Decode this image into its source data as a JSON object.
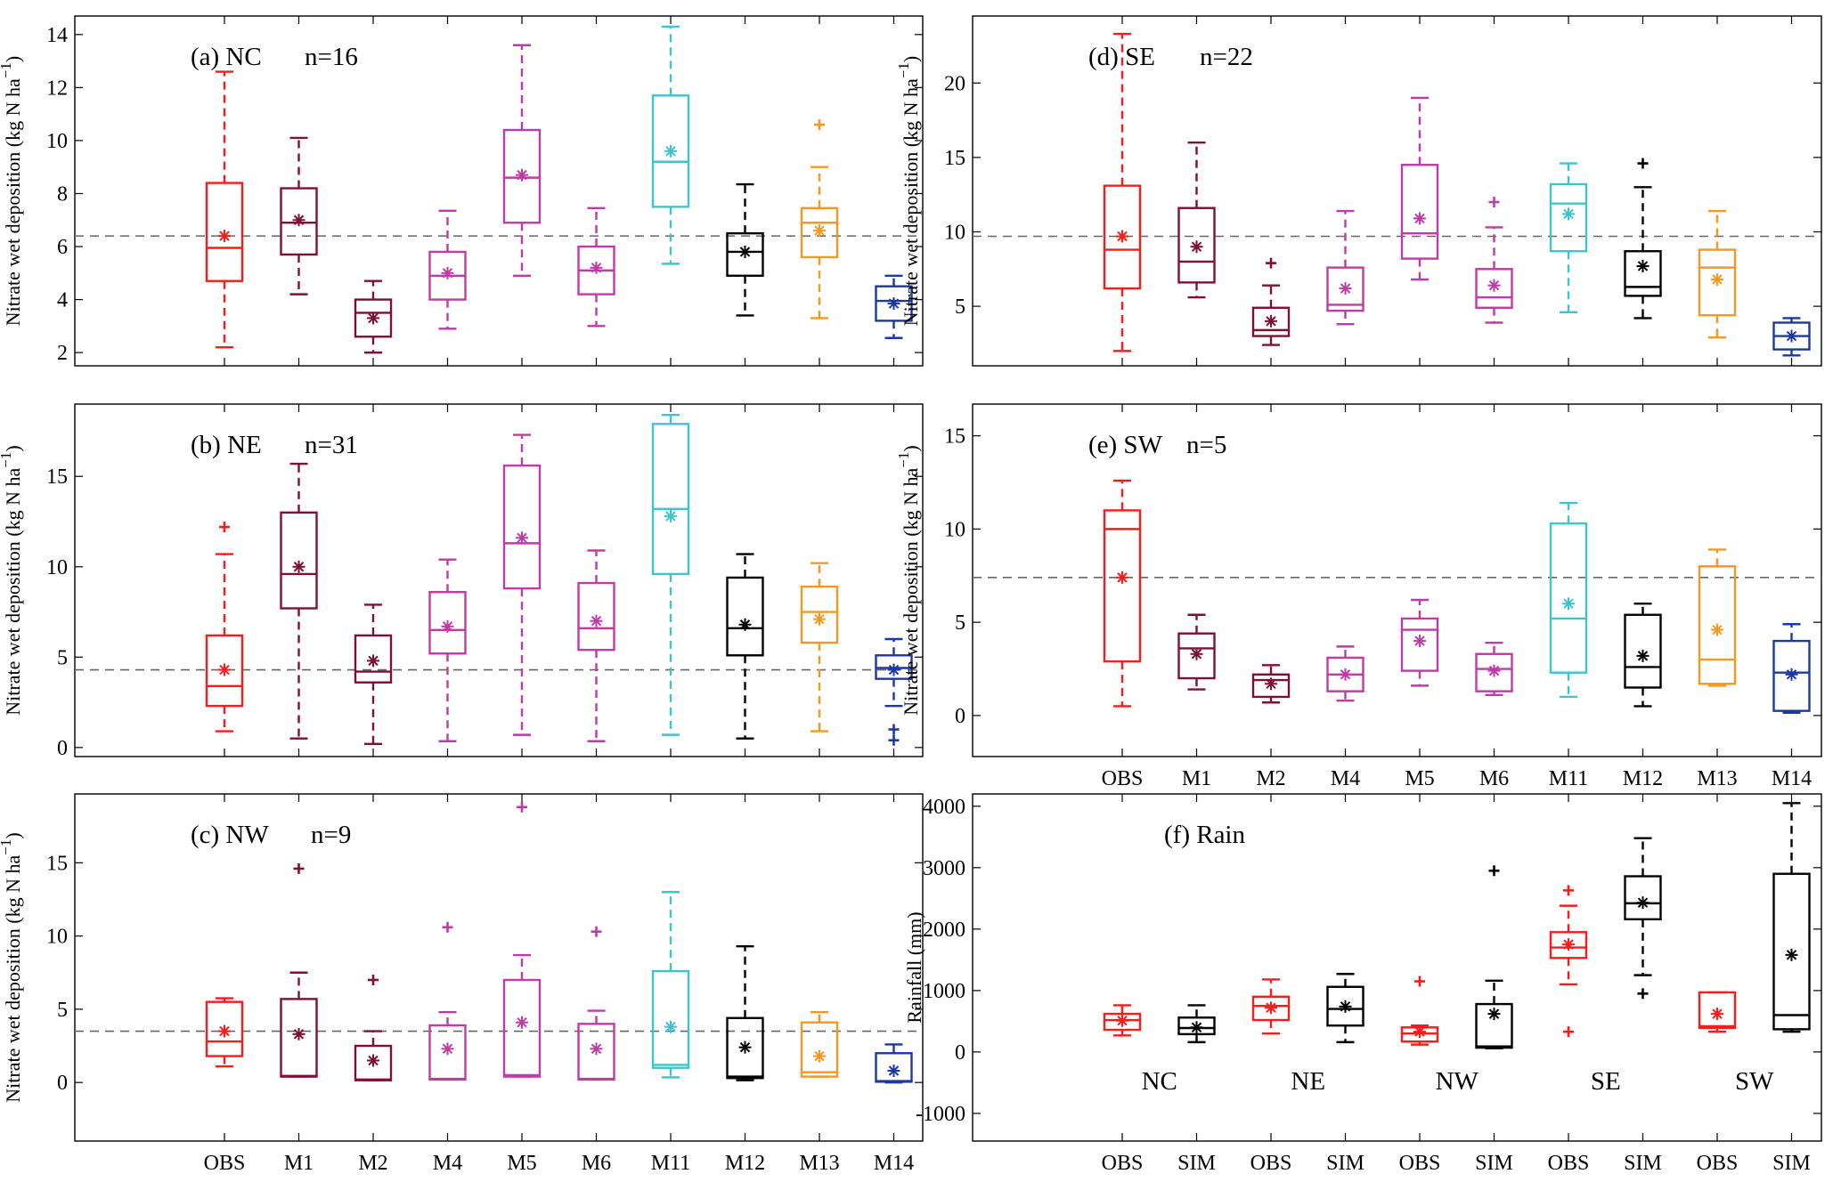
{
  "colors": {
    "OBS": "#ff1a1a",
    "M1": "#7f1030",
    "M2": "#7f1030",
    "M4": "#c03aa8",
    "M5": "#c03aa8",
    "M6": "#c03aa8",
    "M11": "#3cc4cf",
    "M12": "#000000",
    "M13": "#f7981d",
    "M14": "#1a3a9f",
    "SIM": "#000000",
    "axis": "#000000",
    "refline": "#666666"
  },
  "chart_data": [
    {
      "id": "a",
      "type": "boxplot",
      "title": "(a) NC",
      "n_label": "n=16",
      "ylabel": "Nitrate wet deposition (kg N ha",
      "ylabel_exp": "−1",
      "ylabel_close": ")",
      "ylim": [
        1.5,
        14.7
      ],
      "yticks": [
        2,
        4,
        6,
        8,
        10,
        12,
        14
      ],
      "ref_line": 6.4,
      "show_xticklabels": false,
      "categories": [
        "OBS",
        "M1",
        "M2",
        "M4",
        "M5",
        "M6",
        "M11",
        "M12",
        "M13",
        "M14"
      ],
      "boxes": [
        {
          "cat": "OBS",
          "wlo": 2.2,
          "q1": 4.7,
          "med": 5.95,
          "q3": 8.4,
          "whi": 12.6,
          "mean": 6.4,
          "outliers": []
        },
        {
          "cat": "M1",
          "wlo": 4.2,
          "q1": 5.7,
          "med": 6.9,
          "q3": 8.2,
          "whi": 10.1,
          "mean": 7.0,
          "outliers": []
        },
        {
          "cat": "M2",
          "wlo": 2.0,
          "q1": 2.6,
          "med": 3.5,
          "q3": 4.0,
          "whi": 4.7,
          "mean": 3.3,
          "outliers": []
        },
        {
          "cat": "M4",
          "wlo": 2.9,
          "q1": 4.0,
          "med": 4.9,
          "q3": 5.8,
          "whi": 7.35,
          "mean": 5.0,
          "outliers": []
        },
        {
          "cat": "M5",
          "wlo": 4.9,
          "q1": 6.9,
          "med": 8.6,
          "q3": 10.4,
          "whi": 13.6,
          "mean": 8.7,
          "outliers": []
        },
        {
          "cat": "M6",
          "wlo": 3.0,
          "q1": 4.2,
          "med": 5.1,
          "q3": 6.0,
          "whi": 7.45,
          "mean": 5.2,
          "outliers": []
        },
        {
          "cat": "M11",
          "wlo": 5.35,
          "q1": 7.5,
          "med": 9.2,
          "q3": 11.7,
          "whi": 14.3,
          "mean": 9.6,
          "outliers": []
        },
        {
          "cat": "M12",
          "wlo": 3.4,
          "q1": 4.9,
          "med": 5.8,
          "q3": 6.5,
          "whi": 8.35,
          "mean": 5.8,
          "outliers": []
        },
        {
          "cat": "M13",
          "wlo": 3.3,
          "q1": 5.6,
          "med": 6.9,
          "q3": 7.45,
          "whi": 9.0,
          "mean": 6.6,
          "outliers": [
            10.6
          ]
        },
        {
          "cat": "M14",
          "wlo": 2.55,
          "q1": 3.2,
          "med": 3.95,
          "q3": 4.5,
          "whi": 4.9,
          "mean": 3.85,
          "outliers": []
        }
      ]
    },
    {
      "id": "b",
      "type": "boxplot",
      "title": "(b) NE",
      "n_label": "n=31",
      "ylabel": "Nitrate wet deposition (kg N ha",
      "ylabel_exp": "−1",
      "ylabel_close": ")",
      "ylim": [
        -0.5,
        19
      ],
      "yticks": [
        0,
        5,
        10,
        15
      ],
      "ref_line": 4.3,
      "show_xticklabels": false,
      "categories": [
        "OBS",
        "M1",
        "M2",
        "M4",
        "M5",
        "M6",
        "M11",
        "M12",
        "M13",
        "M14"
      ],
      "boxes": [
        {
          "cat": "OBS",
          "wlo": 0.9,
          "q1": 2.3,
          "med": 3.4,
          "q3": 6.2,
          "whi": 10.7,
          "mean": 4.3,
          "outliers": [
            12.2
          ]
        },
        {
          "cat": "M1",
          "wlo": 0.5,
          "q1": 7.7,
          "med": 9.6,
          "q3": 13.0,
          "whi": 15.7,
          "mean": 10.0,
          "outliers": []
        },
        {
          "cat": "M2",
          "wlo": 0.2,
          "q1": 3.6,
          "med": 4.2,
          "q3": 6.2,
          "whi": 7.9,
          "mean": 4.8,
          "outliers": []
        },
        {
          "cat": "M4",
          "wlo": 0.35,
          "q1": 5.2,
          "med": 6.5,
          "q3": 8.6,
          "whi": 10.4,
          "mean": 6.7,
          "outliers": []
        },
        {
          "cat": "M5",
          "wlo": 0.7,
          "q1": 8.8,
          "med": 11.3,
          "q3": 15.6,
          "whi": 17.3,
          "mean": 11.6,
          "outliers": []
        },
        {
          "cat": "M6",
          "wlo": 0.35,
          "q1": 5.4,
          "med": 6.6,
          "q3": 9.1,
          "whi": 10.9,
          "mean": 7.0,
          "outliers": []
        },
        {
          "cat": "M11",
          "wlo": 0.7,
          "q1": 9.6,
          "med": 13.2,
          "q3": 17.9,
          "whi": 18.4,
          "mean": 12.8,
          "outliers": []
        },
        {
          "cat": "M12",
          "wlo": 0.5,
          "q1": 5.1,
          "med": 6.6,
          "q3": 9.4,
          "whi": 10.7,
          "mean": 6.8,
          "outliers": []
        },
        {
          "cat": "M13",
          "wlo": 0.9,
          "q1": 5.8,
          "med": 7.5,
          "q3": 8.9,
          "whi": 10.2,
          "mean": 7.1,
          "outliers": []
        },
        {
          "cat": "M14",
          "wlo": 2.3,
          "q1": 3.8,
          "med": 4.4,
          "q3": 5.1,
          "whi": 6.0,
          "mean": 4.3,
          "outliers": [
            1.0,
            0.4
          ]
        }
      ]
    },
    {
      "id": "c",
      "type": "boxplot",
      "title": "(c) NW",
      "n_label": "n=9",
      "ylabel": "Nitrate wet deposition (kg N ha",
      "ylabel_exp": "−1",
      "ylabel_close": ")",
      "ylim": [
        -4,
        19.7
      ],
      "yticks": [
        0,
        5,
        10,
        15
      ],
      "ref_line": 3.5,
      "show_xticklabels": true,
      "categories": [
        "OBS",
        "M1",
        "M2",
        "M4",
        "M5",
        "M6",
        "M11",
        "M12",
        "M13",
        "M14"
      ],
      "boxes": [
        {
          "cat": "OBS",
          "wlo": 1.1,
          "q1": 1.8,
          "med": 2.8,
          "q3": 5.5,
          "whi": 5.75,
          "mean": 3.5,
          "outliers": []
        },
        {
          "cat": "M1",
          "wlo": 0.4,
          "q1": 0.4,
          "med": 0.45,
          "q3": 5.7,
          "whi": 7.5,
          "mean": 3.3,
          "outliers": [
            14.6
          ]
        },
        {
          "cat": "M2",
          "wlo": 0.15,
          "q1": 0.15,
          "med": 0.2,
          "q3": 2.5,
          "whi": 3.5,
          "mean": 1.5,
          "outliers": [
            7.0
          ]
        },
        {
          "cat": "M4",
          "wlo": 0.2,
          "q1": 0.2,
          "med": 0.25,
          "q3": 3.9,
          "whi": 4.8,
          "mean": 2.3,
          "outliers": [
            10.6
          ]
        },
        {
          "cat": "M5",
          "wlo": 0.4,
          "q1": 0.4,
          "med": 0.5,
          "q3": 7.0,
          "whi": 8.7,
          "mean": 4.1,
          "outliers": [
            18.8
          ]
        },
        {
          "cat": "M6",
          "wlo": 0.2,
          "q1": 0.2,
          "med": 0.25,
          "q3": 4.0,
          "whi": 4.9,
          "mean": 2.3,
          "outliers": [
            10.3
          ]
        },
        {
          "cat": "M11",
          "wlo": 0.35,
          "q1": 1.0,
          "med": 1.2,
          "q3": 7.6,
          "whi": 13.0,
          "mean": 3.8,
          "outliers": []
        },
        {
          "cat": "M12",
          "wlo": 0.15,
          "q1": 0.3,
          "med": 0.4,
          "q3": 4.4,
          "whi": 9.3,
          "mean": 2.4,
          "outliers": []
        },
        {
          "cat": "M13",
          "wlo": 0.4,
          "q1": 0.4,
          "med": 0.7,
          "q3": 4.1,
          "whi": 4.8,
          "mean": 1.8,
          "outliers": []
        },
        {
          "cat": "M14",
          "wlo": 0.0,
          "q1": 0.05,
          "med": 0.1,
          "q3": 2.0,
          "whi": 2.6,
          "mean": 0.8,
          "outliers": []
        }
      ]
    },
    {
      "id": "d",
      "type": "boxplot",
      "title": "(d) SE",
      "n_label": "n=22",
      "ylabel": "Nitrate wet deposition (kg N ha",
      "ylabel_exp": "−1",
      "ylabel_close": ")",
      "ylim": [
        1,
        24.5
      ],
      "yticks": [
        5,
        10,
        15,
        20
      ],
      "ref_line": 9.7,
      "show_xticklabels": false,
      "categories": [
        "OBS",
        "M1",
        "M2",
        "M4",
        "M5",
        "M6",
        "M11",
        "M12",
        "M13",
        "M14"
      ],
      "boxes": [
        {
          "cat": "OBS",
          "wlo": 2.0,
          "q1": 6.2,
          "med": 8.8,
          "q3": 13.1,
          "whi": 23.3,
          "mean": 9.7,
          "outliers": []
        },
        {
          "cat": "M1",
          "wlo": 5.6,
          "q1": 6.6,
          "med": 8.0,
          "q3": 11.6,
          "whi": 16.0,
          "mean": 9.0,
          "outliers": []
        },
        {
          "cat": "M2",
          "wlo": 2.4,
          "q1": 3.0,
          "med": 3.4,
          "q3": 4.9,
          "whi": 6.4,
          "mean": 4.0,
          "outliers": [
            7.9
          ]
        },
        {
          "cat": "M4",
          "wlo": 3.8,
          "q1": 4.7,
          "med": 5.1,
          "q3": 7.6,
          "whi": 11.4,
          "mean": 6.2,
          "outliers": []
        },
        {
          "cat": "M5",
          "wlo": 6.8,
          "q1": 8.2,
          "med": 9.9,
          "q3": 14.5,
          "whi": 19.0,
          "mean": 10.9,
          "outliers": []
        },
        {
          "cat": "M6",
          "wlo": 3.9,
          "q1": 4.9,
          "med": 5.6,
          "q3": 7.5,
          "whi": 10.3,
          "mean": 6.4,
          "outliers": [
            12.0
          ]
        },
        {
          "cat": "M11",
          "wlo": 4.6,
          "q1": 8.7,
          "med": 11.9,
          "q3": 13.2,
          "whi": 14.6,
          "mean": 11.2,
          "outliers": []
        },
        {
          "cat": "M12",
          "wlo": 4.2,
          "q1": 5.7,
          "med": 6.3,
          "q3": 8.7,
          "whi": 13.0,
          "mean": 7.7,
          "outliers": [
            14.6
          ]
        },
        {
          "cat": "M13",
          "wlo": 2.9,
          "q1": 4.4,
          "med": 7.6,
          "q3": 8.8,
          "whi": 11.4,
          "mean": 6.8,
          "outliers": []
        },
        {
          "cat": "M14",
          "wlo": 1.7,
          "q1": 2.1,
          "med": 3.0,
          "q3": 3.9,
          "whi": 4.2,
          "mean": 3.0,
          "outliers": []
        }
      ]
    },
    {
      "id": "e",
      "type": "boxplot",
      "title": "(e) SW",
      "n_label": "n=5",
      "ylabel": "Nitrate wet deposition (kg N ha",
      "ylabel_exp": "−1",
      "ylabel_close": ")",
      "ylim": [
        -2.2,
        16.7
      ],
      "yticks": [
        0,
        5,
        10,
        15
      ],
      "ref_line": 7.4,
      "show_xticklabels": true,
      "categories": [
        "OBS",
        "M1",
        "M2",
        "M4",
        "M5",
        "M6",
        "M11",
        "M12",
        "M13",
        "M14"
      ],
      "boxes": [
        {
          "cat": "OBS",
          "wlo": 0.5,
          "q1": 2.9,
          "med": 10.0,
          "q3": 11.0,
          "whi": 12.6,
          "mean": 7.4,
          "outliers": []
        },
        {
          "cat": "M1",
          "wlo": 1.4,
          "q1": 2.0,
          "med": 3.6,
          "q3": 4.4,
          "whi": 5.4,
          "mean": 3.3,
          "outliers": []
        },
        {
          "cat": "M2",
          "wlo": 0.7,
          "q1": 1.0,
          "med": 1.9,
          "q3": 2.2,
          "whi": 2.7,
          "mean": 1.7,
          "outliers": []
        },
        {
          "cat": "M4",
          "wlo": 0.8,
          "q1": 1.3,
          "med": 2.2,
          "q3": 3.1,
          "whi": 3.7,
          "mean": 2.2,
          "outliers": []
        },
        {
          "cat": "M5",
          "wlo": 1.6,
          "q1": 2.4,
          "med": 4.6,
          "q3": 5.2,
          "whi": 6.2,
          "mean": 4.0,
          "outliers": []
        },
        {
          "cat": "M6",
          "wlo": 1.1,
          "q1": 1.3,
          "med": 2.5,
          "q3": 3.3,
          "whi": 3.9,
          "mean": 2.4,
          "outliers": []
        },
        {
          "cat": "M11",
          "wlo": 1.0,
          "q1": 2.3,
          "med": 5.2,
          "q3": 10.3,
          "whi": 11.4,
          "mean": 6.0,
          "outliers": []
        },
        {
          "cat": "M12",
          "wlo": 0.5,
          "q1": 1.5,
          "med": 2.6,
          "q3": 5.4,
          "whi": 6.0,
          "mean": 3.2,
          "outliers": []
        },
        {
          "cat": "M13",
          "wlo": 1.6,
          "q1": 1.7,
          "med": 3.0,
          "q3": 8.0,
          "whi": 8.9,
          "mean": 4.6,
          "outliers": []
        },
        {
          "cat": "M14",
          "wlo": 0.15,
          "q1": 0.25,
          "med": 2.3,
          "q3": 4.0,
          "whi": 4.9,
          "mean": 2.2,
          "outliers": []
        }
      ]
    },
    {
      "id": "f",
      "type": "boxplot",
      "title": "(f) Rain",
      "n_label": "",
      "ylabel": "Rainfall (mm)",
      "ylabel_exp": "",
      "ylabel_close": "",
      "ylim": [
        -1450,
        4200
      ],
      "yticks": [
        -1000,
        0,
        1000,
        2000,
        3000,
        4000
      ],
      "ref_line": null,
      "show_xticklabels": true,
      "categories": [
        "OBS",
        "SIM",
        "OBS",
        "SIM",
        "OBS",
        "SIM",
        "OBS",
        "SIM",
        "OBS",
        "SIM"
      ],
      "group_labels": [
        "NC",
        "NE",
        "NW",
        "SE",
        "SW"
      ],
      "boxes": [
        {
          "cat": "OBS",
          "wlo": 270,
          "q1": 360,
          "med": 520,
          "q3": 620,
          "whi": 760,
          "mean": 510,
          "outliers": []
        },
        {
          "cat": "SIM",
          "wlo": 160,
          "q1": 290,
          "med": 390,
          "q3": 560,
          "whi": 760,
          "mean": 400,
          "outliers": []
        },
        {
          "cat": "OBS",
          "wlo": 300,
          "q1": 520,
          "med": 750,
          "q3": 900,
          "whi": 1180,
          "mean": 720,
          "outliers": []
        },
        {
          "cat": "SIM",
          "wlo": 160,
          "q1": 430,
          "med": 700,
          "q3": 1060,
          "whi": 1270,
          "mean": 740,
          "outliers": []
        },
        {
          "cat": "OBS",
          "wlo": 120,
          "q1": 170,
          "med": 300,
          "q3": 400,
          "whi": 430,
          "mean": 330,
          "outliers": [
            1150
          ]
        },
        {
          "cat": "SIM",
          "wlo": 60,
          "q1": 70,
          "med": 90,
          "q3": 780,
          "whi": 1160,
          "mean": 620,
          "outliers": [
            2950
          ]
        },
        {
          "cat": "OBS",
          "wlo": 1100,
          "q1": 1530,
          "med": 1700,
          "q3": 1950,
          "whi": 2380,
          "mean": 1750,
          "outliers": [
            2630,
            330
          ]
        },
        {
          "cat": "SIM",
          "wlo": 1250,
          "q1": 2160,
          "med": 2420,
          "q3": 2860,
          "whi": 3480,
          "mean": 2430,
          "outliers": [
            950
          ]
        },
        {
          "cat": "OBS",
          "wlo": 330,
          "q1": 390,
          "med": 420,
          "q3": 970,
          "whi": 970,
          "mean": 620,
          "outliers": []
        },
        {
          "cat": "SIM",
          "wlo": 330,
          "q1": 370,
          "med": 600,
          "q3": 2900,
          "whi": 4050,
          "mean": 1580,
          "outliers": []
        }
      ]
    }
  ]
}
